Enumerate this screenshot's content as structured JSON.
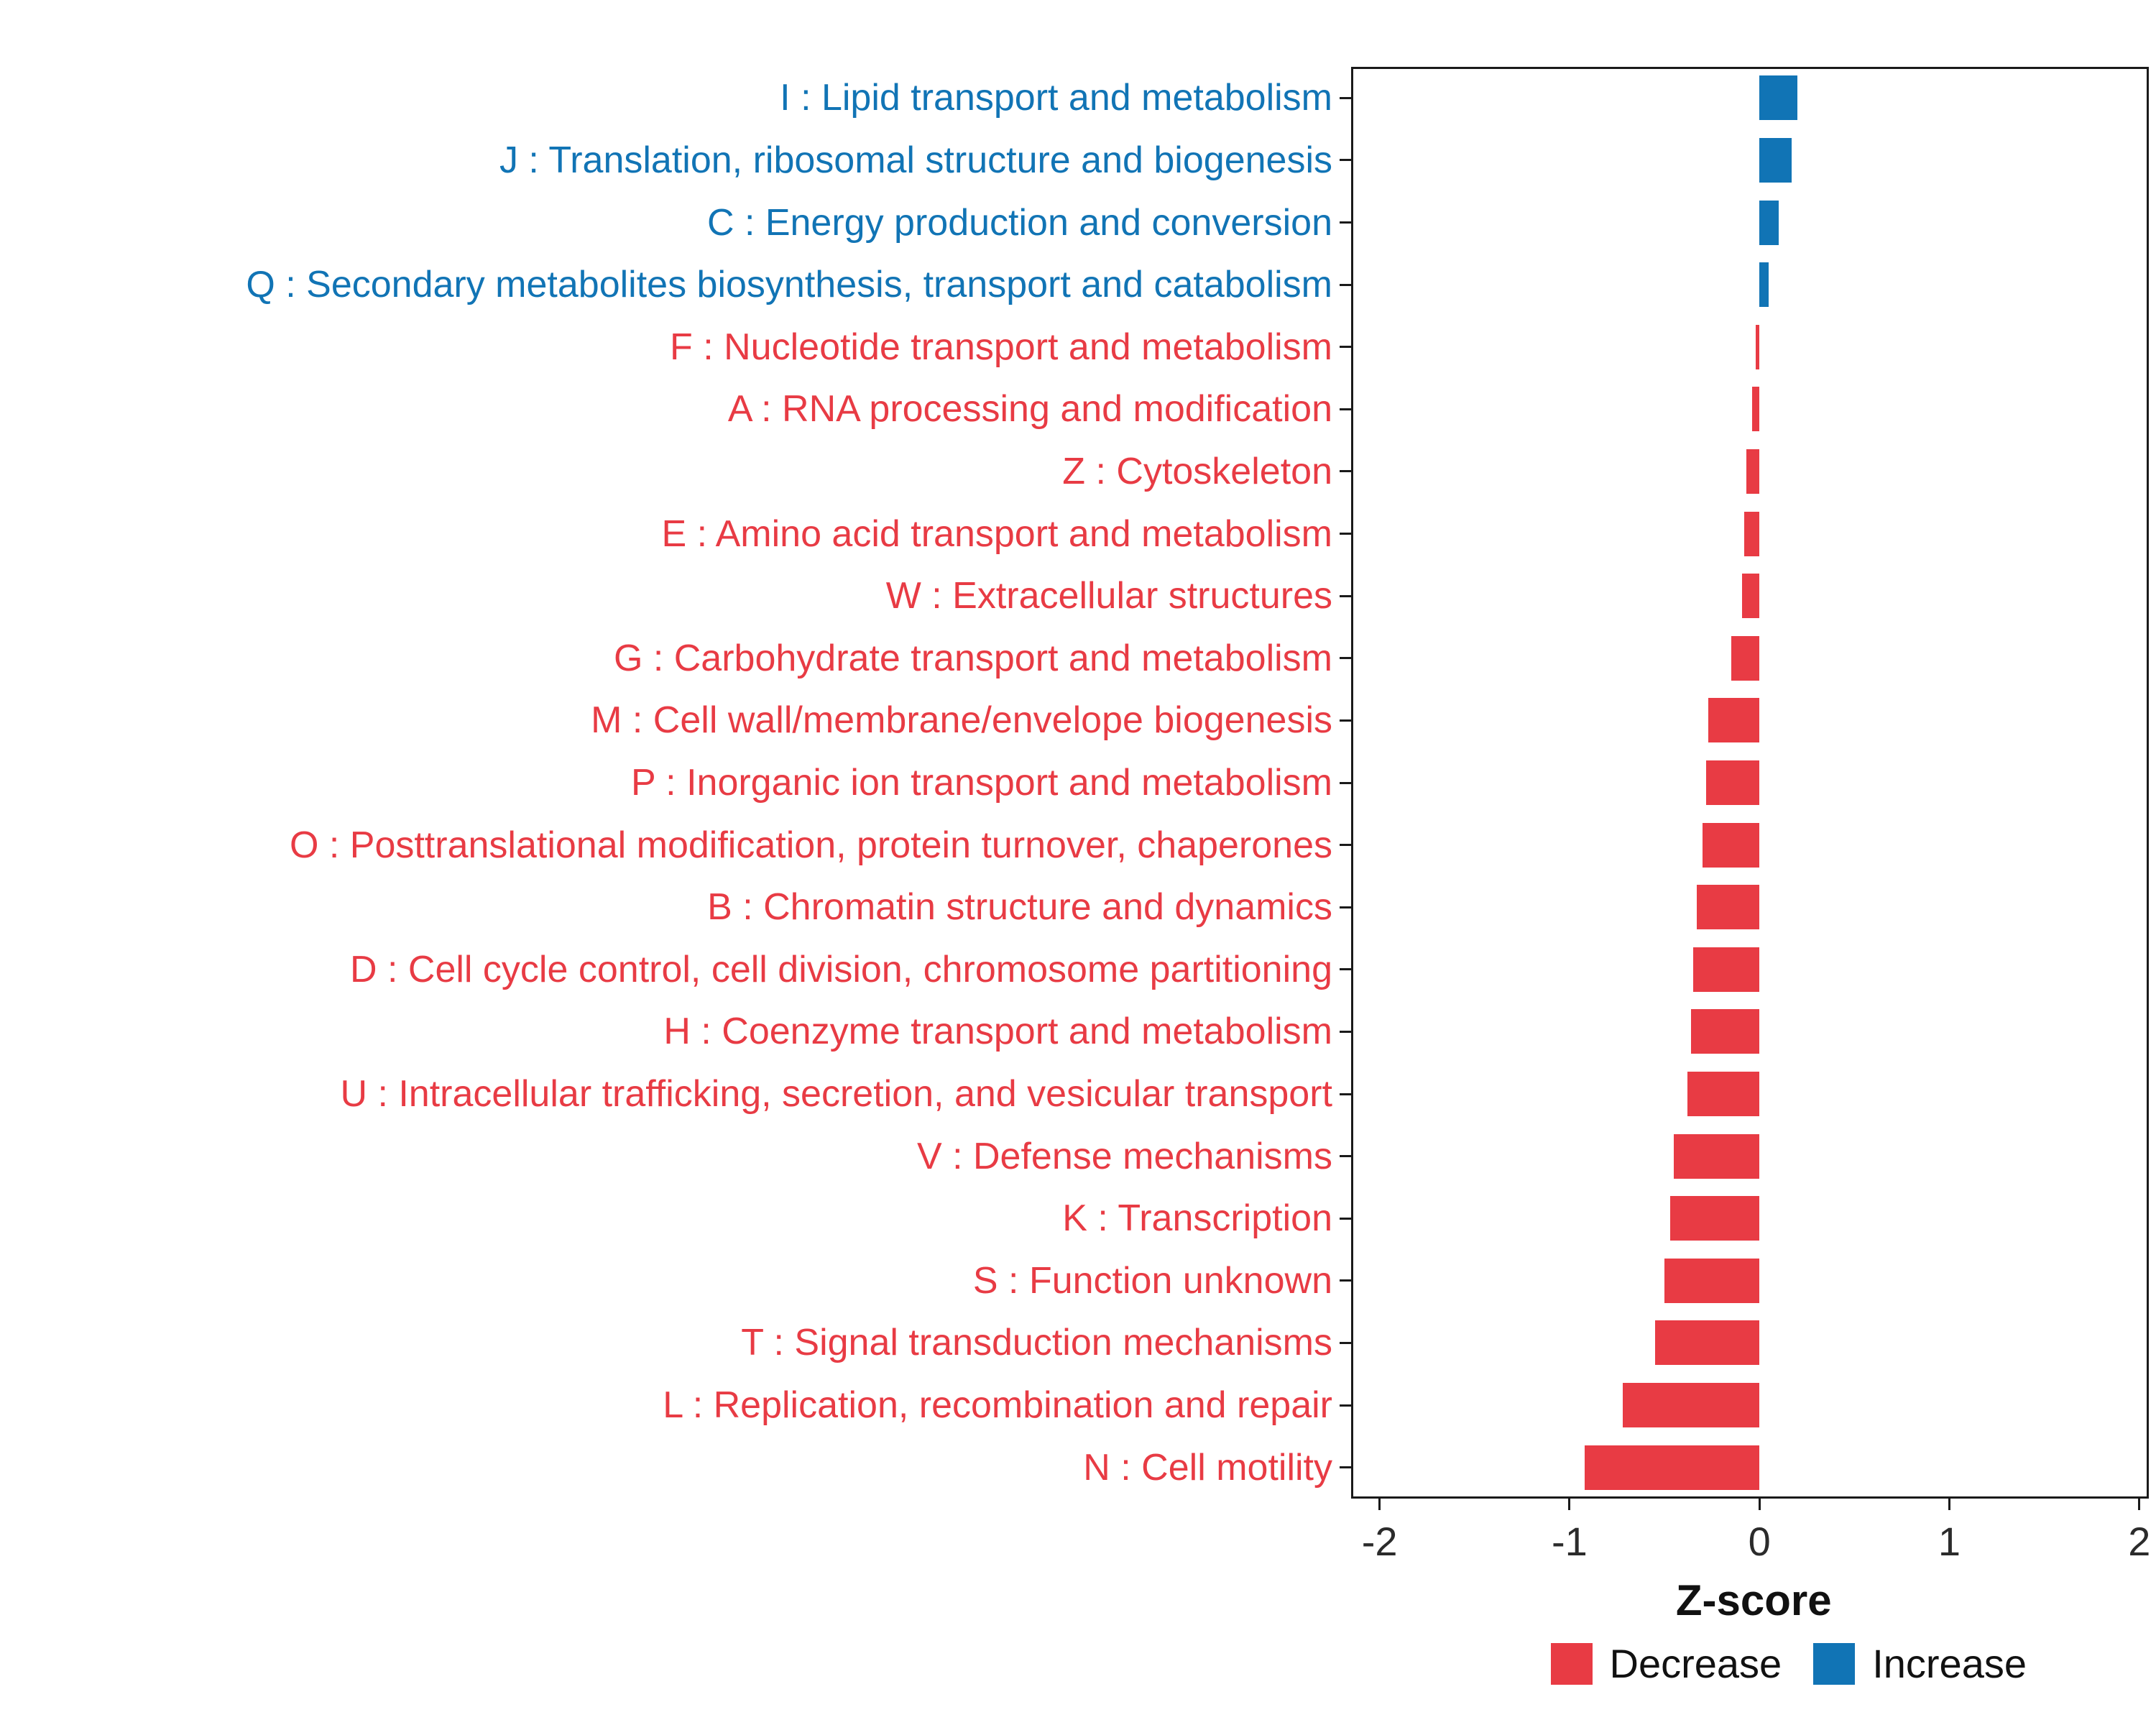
{
  "chart_data": {
    "type": "bar",
    "orientation": "horizontal",
    "title": "",
    "xlabel": "Z-score",
    "ylabel": "",
    "xlim": [
      -2.15,
      2.05
    ],
    "x_ticks": [
      -2,
      -1,
      0,
      1,
      2
    ],
    "grid": false,
    "legend_position": "bottom-right",
    "colors": {
      "increase": "#1174B5",
      "decrease": "#E83B44"
    },
    "legend": [
      {
        "label": "Decrease",
        "color": "#E83B44"
      },
      {
        "label": "Increase",
        "color": "#1174B5"
      }
    ],
    "categories": [
      {
        "label": "I : Lipid transport and metabolism",
        "value": 0.2,
        "direction": "increase"
      },
      {
        "label": "J : Translation, ribosomal structure and biogenesis",
        "value": 0.17,
        "direction": "increase"
      },
      {
        "label": "C : Energy production and conversion",
        "value": 0.1,
        "direction": "increase"
      },
      {
        "label": "Q : Secondary metabolites biosynthesis, transport and catabolism",
        "value": 0.05,
        "direction": "increase"
      },
      {
        "label": "F : Nucleotide transport and metabolism",
        "value": -0.02,
        "direction": "decrease"
      },
      {
        "label": "A : RNA processing and modification",
        "value": -0.04,
        "direction": "decrease"
      },
      {
        "label": "Z : Cytoskeleton",
        "value": -0.07,
        "direction": "decrease"
      },
      {
        "label": "E : Amino acid transport and metabolism",
        "value": -0.08,
        "direction": "decrease"
      },
      {
        "label": "W : Extracellular structures",
        "value": -0.09,
        "direction": "decrease"
      },
      {
        "label": "G : Carbohydrate transport and metabolism",
        "value": -0.15,
        "direction": "decrease"
      },
      {
        "label": "M : Cell wall/membrane/envelope biogenesis",
        "value": -0.27,
        "direction": "decrease"
      },
      {
        "label": "P : Inorganic ion transport and metabolism",
        "value": -0.28,
        "direction": "decrease"
      },
      {
        "label": "O : Posttranslational modification, protein turnover, chaperones",
        "value": -0.3,
        "direction": "decrease"
      },
      {
        "label": "B : Chromatin structure and dynamics",
        "value": -0.33,
        "direction": "decrease"
      },
      {
        "label": "D : Cell cycle control, cell division, chromosome partitioning",
        "value": -0.35,
        "direction": "decrease"
      },
      {
        "label": "H : Coenzyme transport and metabolism",
        "value": -0.36,
        "direction": "decrease"
      },
      {
        "label": "U : Intracellular trafficking, secretion, and vesicular transport",
        "value": -0.38,
        "direction": "decrease"
      },
      {
        "label": "V : Defense mechanisms",
        "value": -0.45,
        "direction": "decrease"
      },
      {
        "label": "K : Transcription",
        "value": -0.47,
        "direction": "decrease"
      },
      {
        "label": "S : Function unknown",
        "value": -0.5,
        "direction": "decrease"
      },
      {
        "label": "T : Signal transduction mechanisms",
        "value": -0.55,
        "direction": "decrease"
      },
      {
        "label": "L : Replication, recombination and repair",
        "value": -0.72,
        "direction": "decrease"
      },
      {
        "label": "N : Cell motility",
        "value": -0.92,
        "direction": "decrease"
      }
    ]
  }
}
